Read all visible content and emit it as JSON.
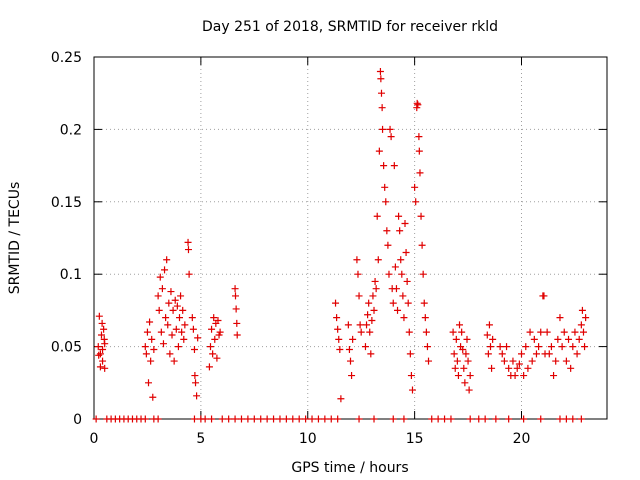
{
  "chart_data": {
    "type": "scatter",
    "title": "Day 251 of 2018, SRMTID for receiver rkld",
    "xlabel": "GPS time / hours",
    "ylabel": "SRMTID / TECUs",
    "xlim": [
      0,
      24
    ],
    "ylim": [
      0,
      0.25
    ],
    "x_ticks": [
      0,
      5,
      10,
      15,
      20
    ],
    "x_tick_labels": [
      "0",
      "5",
      "10",
      "15",
      "20"
    ],
    "y_ticks": [
      0,
      0.05,
      0.1,
      0.15,
      0.2,
      0.25
    ],
    "y_tick_labels": [
      "0",
      "0.05",
      "0.1",
      "0.15",
      "0.2",
      "0.25"
    ],
    "grid": true,
    "marker": "+",
    "color": "#e00000",
    "series": [
      {
        "name": "SRMTID",
        "points": [
          [
            0.1,
            0
          ],
          [
            0.6,
            0
          ],
          [
            0.8,
            0
          ],
          [
            1.0,
            0
          ],
          [
            1.2,
            0
          ],
          [
            1.4,
            0
          ],
          [
            1.6,
            0
          ],
          [
            1.8,
            0
          ],
          [
            2.0,
            0
          ],
          [
            2.2,
            0
          ],
          [
            2.4,
            0
          ],
          [
            2.8,
            0
          ],
          [
            3.0,
            0
          ],
          [
            4.7,
            0
          ],
          [
            5.0,
            0
          ],
          [
            5.2,
            0
          ],
          [
            5.5,
            0
          ],
          [
            6.0,
            0
          ],
          [
            6.3,
            0
          ],
          [
            6.6,
            0
          ],
          [
            6.9,
            0
          ],
          [
            7.2,
            0
          ],
          [
            7.5,
            0
          ],
          [
            7.8,
            0
          ],
          [
            8.1,
            0
          ],
          [
            8.4,
            0
          ],
          [
            8.7,
            0
          ],
          [
            9.0,
            0
          ],
          [
            9.3,
            0
          ],
          [
            9.6,
            0
          ],
          [
            9.9,
            0
          ],
          [
            10.2,
            0
          ],
          [
            10.5,
            0
          ],
          [
            10.8,
            0
          ],
          [
            11.1,
            0
          ],
          [
            11.4,
            0
          ],
          [
            12.4,
            0
          ],
          [
            13.1,
            0
          ],
          [
            14.0,
            0
          ],
          [
            14.5,
            0
          ],
          [
            15.8,
            0
          ],
          [
            16.1,
            0
          ],
          [
            16.4,
            0
          ],
          [
            16.7,
            0
          ],
          [
            17.6,
            0
          ],
          [
            18.0,
            0
          ],
          [
            18.3,
            0
          ],
          [
            18.8,
            0
          ],
          [
            19.4,
            0
          ],
          [
            20.1,
            0
          ],
          [
            20.9,
            0
          ],
          [
            21.8,
            0
          ],
          [
            22.1,
            0
          ],
          [
            22.4,
            0
          ],
          [
            22.8,
            0
          ],
          [
            0.2,
            0.05
          ],
          [
            0.25,
            0.071
          ],
          [
            0.3,
            0.045
          ],
          [
            0.3,
            0.036
          ],
          [
            0.35,
            0.058
          ],
          [
            0.4,
            0.048
          ],
          [
            0.4,
            0.04
          ],
          [
            0.45,
            0.062
          ],
          [
            0.5,
            0.052
          ],
          [
            0.5,
            0.035
          ],
          [
            0.22,
            0.044
          ],
          [
            0.38,
            0.066
          ],
          [
            0.48,
            0.055
          ],
          [
            2.4,
            0.05
          ],
          [
            2.45,
            0.045
          ],
          [
            2.5,
            0.06
          ],
          [
            2.55,
            0.025
          ],
          [
            2.6,
            0.067
          ],
          [
            2.65,
            0.04
          ],
          [
            2.7,
            0.055
          ],
          [
            2.75,
            0.015
          ],
          [
            2.8,
            0.048
          ],
          [
            3.0,
            0.085
          ],
          [
            3.05,
            0.075
          ],
          [
            3.1,
            0.098
          ],
          [
            3.15,
            0.06
          ],
          [
            3.2,
            0.09
          ],
          [
            3.25,
            0.052
          ],
          [
            3.3,
            0.103
          ],
          [
            3.35,
            0.07
          ],
          [
            3.4,
            0.11
          ],
          [
            3.45,
            0.065
          ],
          [
            3.5,
            0.08
          ],
          [
            3.55,
            0.045
          ],
          [
            3.6,
            0.088
          ],
          [
            3.65,
            0.058
          ],
          [
            3.7,
            0.075
          ],
          [
            3.75,
            0.04
          ],
          [
            3.8,
            0.082
          ],
          [
            3.85,
            0.062
          ],
          [
            3.9,
            0.078
          ],
          [
            3.95,
            0.05
          ],
          [
            4.0,
            0.07
          ],
          [
            4.05,
            0.085
          ],
          [
            4.1,
            0.06
          ],
          [
            4.15,
            0.075
          ],
          [
            4.2,
            0.055
          ],
          [
            4.25,
            0.065
          ],
          [
            4.4,
            0.122
          ],
          [
            4.42,
            0.117
          ],
          [
            4.45,
            0.1
          ],
          [
            4.6,
            0.07
          ],
          [
            4.65,
            0.062
          ],
          [
            4.7,
            0.048
          ],
          [
            4.72,
            0.03
          ],
          [
            4.75,
            0.025
          ],
          [
            4.8,
            0.016
          ],
          [
            4.85,
            0.056
          ],
          [
            5.4,
            0.036
          ],
          [
            5.45,
            0.05
          ],
          [
            5.5,
            0.062
          ],
          [
            5.55,
            0.045
          ],
          [
            5.6,
            0.07
          ],
          [
            5.65,
            0.055
          ],
          [
            5.7,
            0.066
          ],
          [
            5.75,
            0.042
          ],
          [
            5.8,
            0.068
          ],
          [
            5.85,
            0.058
          ],
          [
            5.9,
            0.06
          ],
          [
            6.6,
            0.09
          ],
          [
            6.62,
            0.085
          ],
          [
            6.65,
            0.076
          ],
          [
            6.68,
            0.066
          ],
          [
            6.7,
            0.058
          ],
          [
            11.3,
            0.08
          ],
          [
            11.35,
            0.07
          ],
          [
            11.4,
            0.062
          ],
          [
            11.45,
            0.055
          ],
          [
            11.5,
            0.048
          ],
          [
            11.55,
            0.014
          ],
          [
            11.9,
            0.065
          ],
          [
            11.95,
            0.048
          ],
          [
            12.0,
            0.04
          ],
          [
            12.05,
            0.03
          ],
          [
            12.1,
            0.055
          ],
          [
            12.3,
            0.11
          ],
          [
            12.35,
            0.1
          ],
          [
            12.4,
            0.085
          ],
          [
            12.45,
            0.065
          ],
          [
            12.5,
            0.06
          ],
          [
            12.7,
            0.05
          ],
          [
            12.75,
            0.065
          ],
          [
            12.8,
            0.072
          ],
          [
            12.85,
            0.08
          ],
          [
            12.9,
            0.06
          ],
          [
            12.95,
            0.045
          ],
          [
            13.0,
            0.068
          ],
          [
            13.05,
            0.085
          ],
          [
            13.1,
            0.075
          ],
          [
            13.15,
            0.095
          ],
          [
            13.2,
            0.09
          ],
          [
            13.25,
            0.14
          ],
          [
            13.3,
            0.11
          ],
          [
            13.35,
            0.185
          ],
          [
            13.4,
            0.24
          ],
          [
            13.42,
            0.235
          ],
          [
            13.45,
            0.225
          ],
          [
            13.48,
            0.215
          ],
          [
            13.5,
            0.2
          ],
          [
            13.55,
            0.175
          ],
          [
            13.6,
            0.16
          ],
          [
            13.65,
            0.15
          ],
          [
            13.7,
            0.13
          ],
          [
            13.75,
            0.12
          ],
          [
            13.8,
            0.1
          ],
          [
            13.85,
            0.2
          ],
          [
            13.9,
            0.195
          ],
          [
            13.95,
            0.09
          ],
          [
            14.0,
            0.08
          ],
          [
            14.05,
            0.175
          ],
          [
            14.1,
            0.105
          ],
          [
            14.15,
            0.09
          ],
          [
            14.2,
            0.075
          ],
          [
            14.25,
            0.14
          ],
          [
            14.3,
            0.13
          ],
          [
            14.35,
            0.11
          ],
          [
            14.4,
            0.1
          ],
          [
            14.45,
            0.085
          ],
          [
            14.5,
            0.07
          ],
          [
            14.55,
            0.135
          ],
          [
            14.6,
            0.115
          ],
          [
            14.65,
            0.095
          ],
          [
            14.7,
            0.08
          ],
          [
            14.75,
            0.06
          ],
          [
            14.8,
            0.045
          ],
          [
            14.85,
            0.03
          ],
          [
            14.9,
            0.02
          ],
          [
            15.0,
            0.16
          ],
          [
            15.05,
            0.15
          ],
          [
            15.1,
            0.215
          ],
          [
            15.12,
            0.218
          ],
          [
            15.15,
            0.217
          ],
          [
            15.2,
            0.195
          ],
          [
            15.22,
            0.185
          ],
          [
            15.25,
            0.17
          ],
          [
            15.3,
            0.14
          ],
          [
            15.35,
            0.12
          ],
          [
            15.4,
            0.1
          ],
          [
            15.45,
            0.08
          ],
          [
            15.5,
            0.07
          ],
          [
            15.55,
            0.06
          ],
          [
            15.6,
            0.05
          ],
          [
            15.65,
            0.04
          ],
          [
            16.8,
            0.06
          ],
          [
            16.85,
            0.045
          ],
          [
            16.9,
            0.035
          ],
          [
            16.95,
            0.055
          ],
          [
            17.0,
            0.04
          ],
          [
            17.05,
            0.03
          ],
          [
            17.1,
            0.065
          ],
          [
            17.15,
            0.05
          ],
          [
            17.2,
            0.06
          ],
          [
            17.25,
            0.048
          ],
          [
            17.3,
            0.035
          ],
          [
            17.35,
            0.025
          ],
          [
            17.4,
            0.045
          ],
          [
            17.45,
            0.055
          ],
          [
            17.5,
            0.04
          ],
          [
            17.55,
            0.02
          ],
          [
            17.6,
            0.03
          ],
          [
            18.4,
            0.058
          ],
          [
            18.45,
            0.045
          ],
          [
            18.5,
            0.065
          ],
          [
            18.55,
            0.05
          ],
          [
            18.6,
            0.035
          ],
          [
            18.65,
            0.055
          ],
          [
            19.0,
            0.05
          ],
          [
            19.1,
            0.045
          ],
          [
            19.2,
            0.04
          ],
          [
            19.3,
            0.05
          ],
          [
            19.4,
            0.035
          ],
          [
            19.5,
            0.03
          ],
          [
            19.6,
            0.04
          ],
          [
            19.7,
            0.03
          ],
          [
            19.8,
            0.035
          ],
          [
            19.9,
            0.038
          ],
          [
            20.0,
            0.045
          ],
          [
            20.1,
            0.03
          ],
          [
            20.2,
            0.05
          ],
          [
            20.3,
            0.035
          ],
          [
            20.4,
            0.06
          ],
          [
            20.5,
            0.04
          ],
          [
            20.6,
            0.055
          ],
          [
            20.7,
            0.045
          ],
          [
            20.8,
            0.05
          ],
          [
            20.9,
            0.06
          ],
          [
            21.0,
            0.085
          ],
          [
            21.05,
            0.085
          ],
          [
            21.1,
            0.045
          ],
          [
            21.2,
            0.06
          ],
          [
            21.3,
            0.045
          ],
          [
            21.4,
            0.05
          ],
          [
            21.5,
            0.03
          ],
          [
            21.6,
            0.04
          ],
          [
            21.7,
            0.055
          ],
          [
            21.8,
            0.07
          ],
          [
            21.9,
            0.05
          ],
          [
            22.0,
            0.06
          ],
          [
            22.1,
            0.04
          ],
          [
            22.2,
            0.055
          ],
          [
            22.3,
            0.035
          ],
          [
            22.4,
            0.05
          ],
          [
            22.5,
            0.06
          ],
          [
            22.6,
            0.045
          ],
          [
            22.7,
            0.055
          ],
          [
            22.8,
            0.065
          ],
          [
            22.85,
            0.075
          ],
          [
            22.9,
            0.06
          ],
          [
            22.95,
            0.05
          ],
          [
            23.0,
            0.07
          ]
        ]
      }
    ]
  }
}
